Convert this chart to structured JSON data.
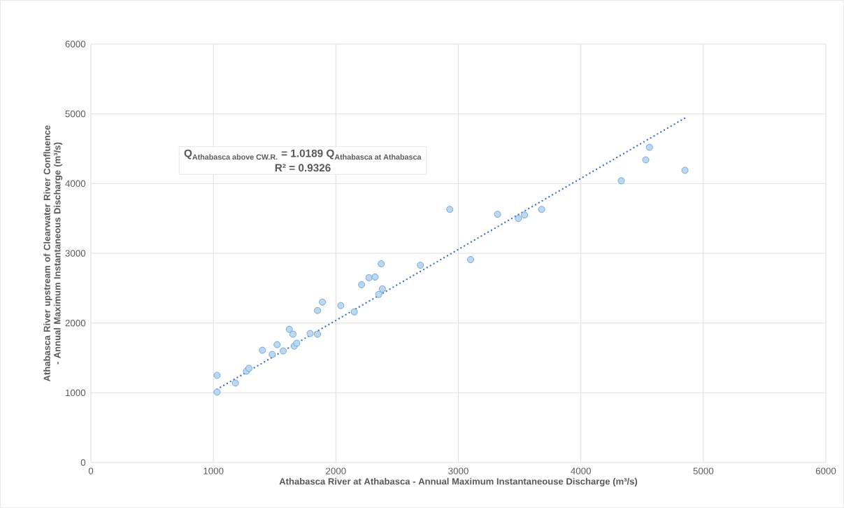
{
  "chart_data": {
    "type": "scatter",
    "xlabel": "Athabasca River at Athabasca - Annual Maximum Instantaneouse Discharge (m³/s)",
    "ylabel": "Athabasca River upstream of Clearwater River Confluence - Annual Maximum Instantaneous Discharge (m³/s)",
    "annotations": [
      "\\text{Q}_{\\text{Athabasca above CW.R.}}\\text{ = 1.0189 Q}_{\\text{Athabasca at Athabasca}}",
      "R² = 0.9326"
    ],
    "series": [
      {
        "color": "#5b9bd5",
        "marker": "circle",
        "x": [
          1030,
          1030,
          1180,
          1270,
          1290,
          1400,
          1480,
          1520,
          1570,
          1620,
          1650,
          1660,
          1680,
          1790,
          1850,
          1850,
          1890,
          2040,
          2150,
          2210,
          2270,
          2320,
          2350,
          2370,
          2380,
          2690,
          2930,
          3100,
          3320,
          3490,
          3540,
          3680,
          4330,
          4530,
          4560,
          4850
        ],
        "values": [
          1250,
          1010,
          1140,
          1310,
          1350,
          1610,
          1550,
          1690,
          1600,
          1910,
          1840,
          1670,
          1710,
          1850,
          1840,
          2180,
          2300,
          2250,
          2160,
          2550,
          2650,
          2660,
          2410,
          2850,
          2490,
          2830,
          3630,
          2910,
          3560,
          3500,
          3550,
          3630,
          4040,
          4340,
          4520,
          4190
        ]
      },
      {
        "type": "line",
        "color": "#4472c4",
        "line_style": "dotted",
        "marker": "none",
        "x": [
          1030,
          4850
        ],
        "values": [
          1050,
          4940
        ]
      }
    ],
    "xlim": [
      0,
      6000
    ],
    "ylim": [
      0,
      6000
    ],
    "xticks": [
      0,
      1000,
      2000,
      3000,
      4000,
      5000,
      6000
    ],
    "yticks": [
      0,
      1000,
      2000,
      3000,
      4000,
      5000,
      6000
    ],
    "grid": true
  }
}
